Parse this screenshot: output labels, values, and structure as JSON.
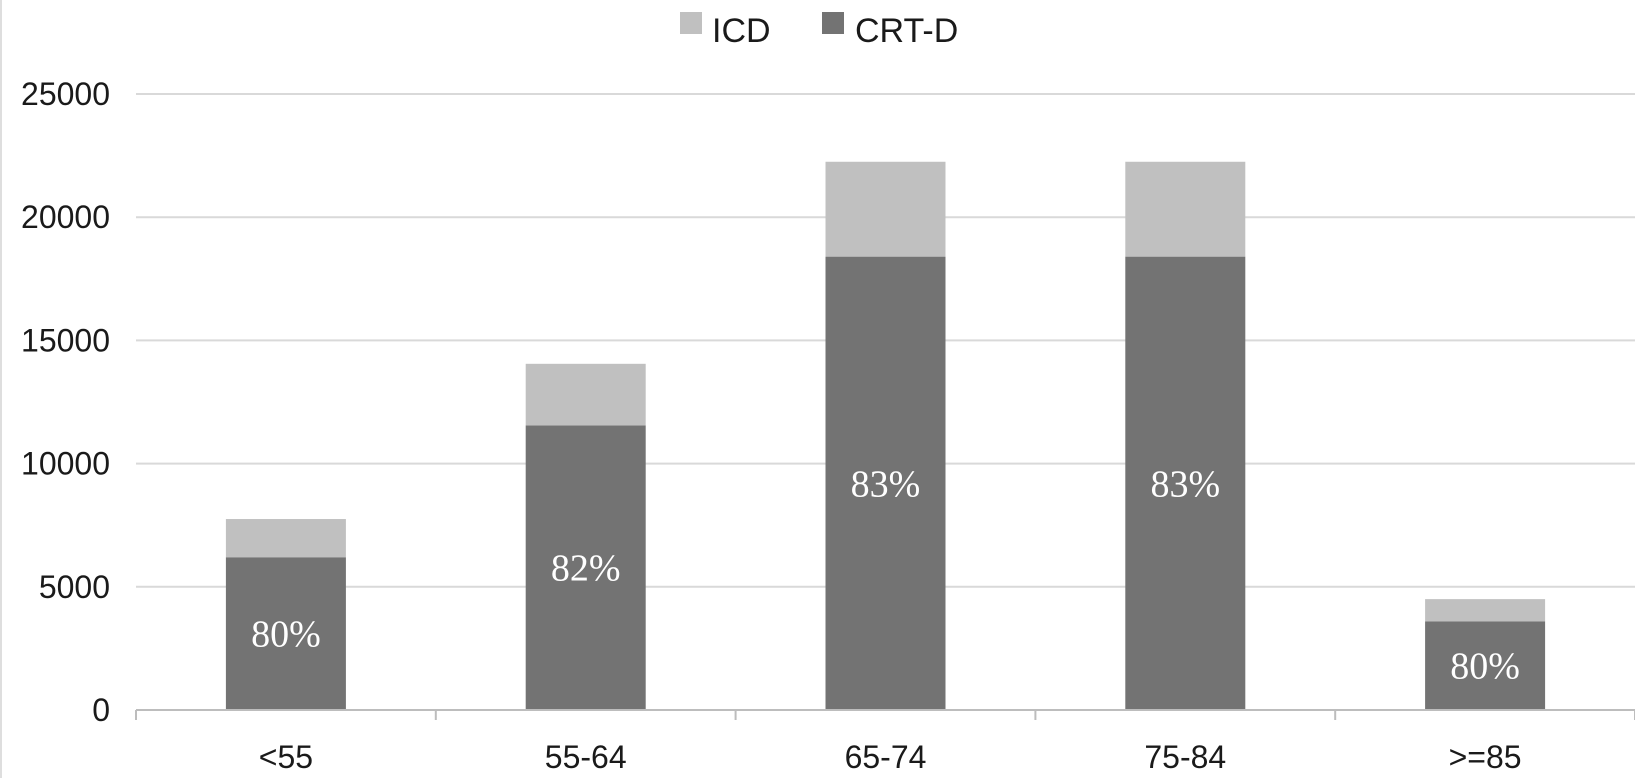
{
  "chart_data": {
    "type": "bar",
    "stacked": true,
    "categories": [
      "<55",
      "55-64",
      "65-74",
      "75-84",
      ">=85"
    ],
    "series": [
      {
        "name": "CRT-D",
        "color": "#737373",
        "values": [
          6200,
          11550,
          18400,
          18400,
          3600
        ]
      },
      {
        "name": "ICD",
        "color": "#c0c0c0",
        "values": [
          1550,
          2500,
          3850,
          3850,
          900
        ]
      }
    ],
    "data_labels": [
      "80%",
      "82%",
      "83%",
      "83%",
      "80%"
    ],
    "title": "",
    "xlabel": "",
    "ylabel": "",
    "ylim": [
      0,
      25000
    ],
    "yticks": [
      0,
      5000,
      10000,
      15000,
      20000,
      25000
    ],
    "ytick_labels": [
      "0",
      "5000",
      "10000",
      "15000",
      "20000",
      "25000"
    ],
    "grid": true,
    "legend": {
      "position": "top",
      "entries": [
        {
          "label": "ICD",
          "color": "#c0c0c0"
        },
        {
          "label": "CRT-D",
          "color": "#737373"
        }
      ]
    }
  }
}
